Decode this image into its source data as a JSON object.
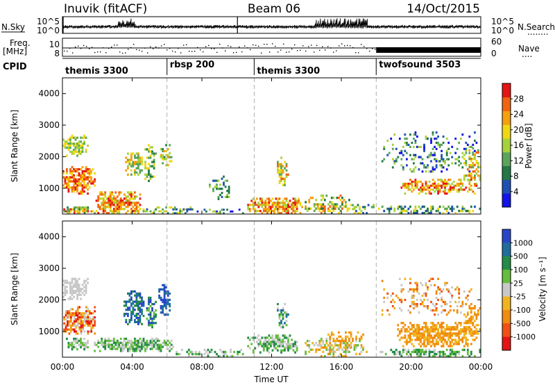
{
  "header": {
    "station": "Inuvik (fitACF)",
    "beam": "Beam 06",
    "date": "14/Oct/2015"
  },
  "left_labels": {
    "nsky": "N.Sky",
    "freq_line1": "Freq.",
    "freq_line2": "[MHz]",
    "cpid": "CPID"
  },
  "right_labels": {
    "nsearch": "N.Search",
    "nsearch_dots": "........",
    "nave": "Nave",
    "nave_dots": "...."
  },
  "cpid_segments": [
    {
      "label": "themis 3300",
      "start": 0,
      "end": 6
    },
    {
      "label": "rbsp 200",
      "start": 6,
      "end": 11
    },
    {
      "label": "themis 3300",
      "start": 11,
      "end": 18
    },
    {
      "label": "twofsound 3503",
      "start": 18,
      "end": 24
    }
  ],
  "chart_data": [
    {
      "type": "line",
      "panel": "noise",
      "y_left_ticks": [
        "10^5",
        "10^0"
      ],
      "y_right_ticks": [
        "10^5",
        "10^0"
      ],
      "xlim": [
        0,
        24
      ],
      "spikes_hours": [
        0,
        10
      ],
      "active_hours": [
        [
          3.2,
          4.2
        ],
        [
          14.5,
          17.5
        ]
      ]
    },
    {
      "type": "scatter",
      "panel": "frequency",
      "y_left_ticks": [
        "10",
        "8"
      ],
      "y_right_ticks": [
        "60",
        "0"
      ],
      "xlim": [
        0,
        24
      ],
      "solid_band_hours": [
        18,
        24
      ]
    },
    {
      "type": "heatmap",
      "panel": "power",
      "ylabel": "Slant Range [km]",
      "ylim": [
        180,
        4500
      ],
      "yticks": [
        1000,
        2000,
        3000,
        4000
      ],
      "xlim": [
        0,
        24
      ],
      "colorbar_label": "Power [dB]",
      "colorbar_ticks": [
        4,
        8,
        12,
        16,
        20,
        24,
        28
      ],
      "colorbar_range": [
        0,
        32
      ],
      "colorbar_colors": [
        "#1414e8",
        "#1e50b4",
        "#237845",
        "#5aa55a",
        "#a5d23c",
        "#f0d714",
        "#f5a00f",
        "#f0640f",
        "#e61414"
      ]
    },
    {
      "type": "heatmap",
      "panel": "velocity",
      "ylabel": "Slant Range [km]",
      "xlabel": "Time UT",
      "ylim": [
        180,
        4500
      ],
      "yticks": [
        1000,
        2000,
        3000,
        4000
      ],
      "xticks": [
        "00:00",
        "04:00",
        "08:00",
        "12:00",
        "16:00",
        "20:00",
        "00:00"
      ],
      "xlim": [
        0,
        24
      ],
      "colorbar_label": "Velocity [m s⁻¹]",
      "colorbar_ticks": [
        "1000",
        "500",
        "100",
        "25",
        "-25",
        "-100",
        "-500",
        "-1000"
      ],
      "colorbar_colors": [
        "#2846c8",
        "#1e6ea0",
        "#238c46",
        "#64be3c",
        "#c8c8c8",
        "#f0b41e",
        "#f08c0f",
        "#f05014",
        "#e61414"
      ]
    }
  ]
}
